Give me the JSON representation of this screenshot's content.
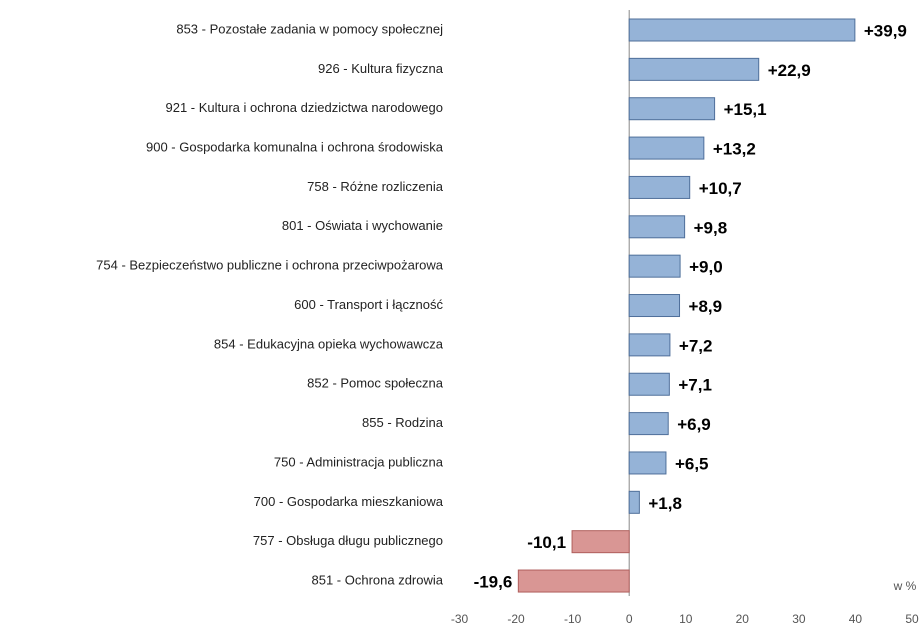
{
  "chart_data": {
    "type": "bar",
    "orientation": "horizontal",
    "x_label": "w %",
    "categories": [
      "853 - Pozostałe zadania w pomocy społecznej",
      "926 - Kultura fizyczna",
      "921 - Kultura i ochrona dziedzictwa narodowego",
      "900 - Gospodarka komunalna i ochrona środowiska",
      "758 - Różne rozliczenia",
      "801 - Oświata i wychowanie",
      "754 - Bezpieczeństwo publiczne i ochrona przeciwpożarowa",
      "600 - Transport i łączność",
      "854 - Edukacyjna opieka wychowawcza",
      "852 - Pomoc społeczna",
      "855 - Rodzina",
      "750 - Administracja publiczna",
      "700 - Gospodarka mieszkaniowa",
      "757 - Obsługa długu publicznego",
      "851 - Ochrona zdrowia"
    ],
    "values": [
      39.9,
      22.9,
      15.1,
      13.2,
      10.7,
      9.8,
      9.0,
      8.9,
      7.2,
      7.1,
      6.9,
      6.5,
      1.8,
      -10.1,
      -19.6
    ],
    "value_labels": [
      "+39,9",
      "+22,9",
      "+15,1",
      "+13,2",
      "+10,7",
      "+9,8",
      "+9,0",
      "+8,9",
      "+7,2",
      "+7,1",
      "+6,9",
      "+6,5",
      "+1,8",
      "-10,1",
      "-19,6"
    ],
    "color": "#95b3d7",
    "negative_color": "#d99694",
    "xlim": [
      -30,
      50
    ],
    "xticks": [
      -30,
      -20,
      -10,
      0,
      10,
      20,
      30,
      40,
      50
    ]
  }
}
